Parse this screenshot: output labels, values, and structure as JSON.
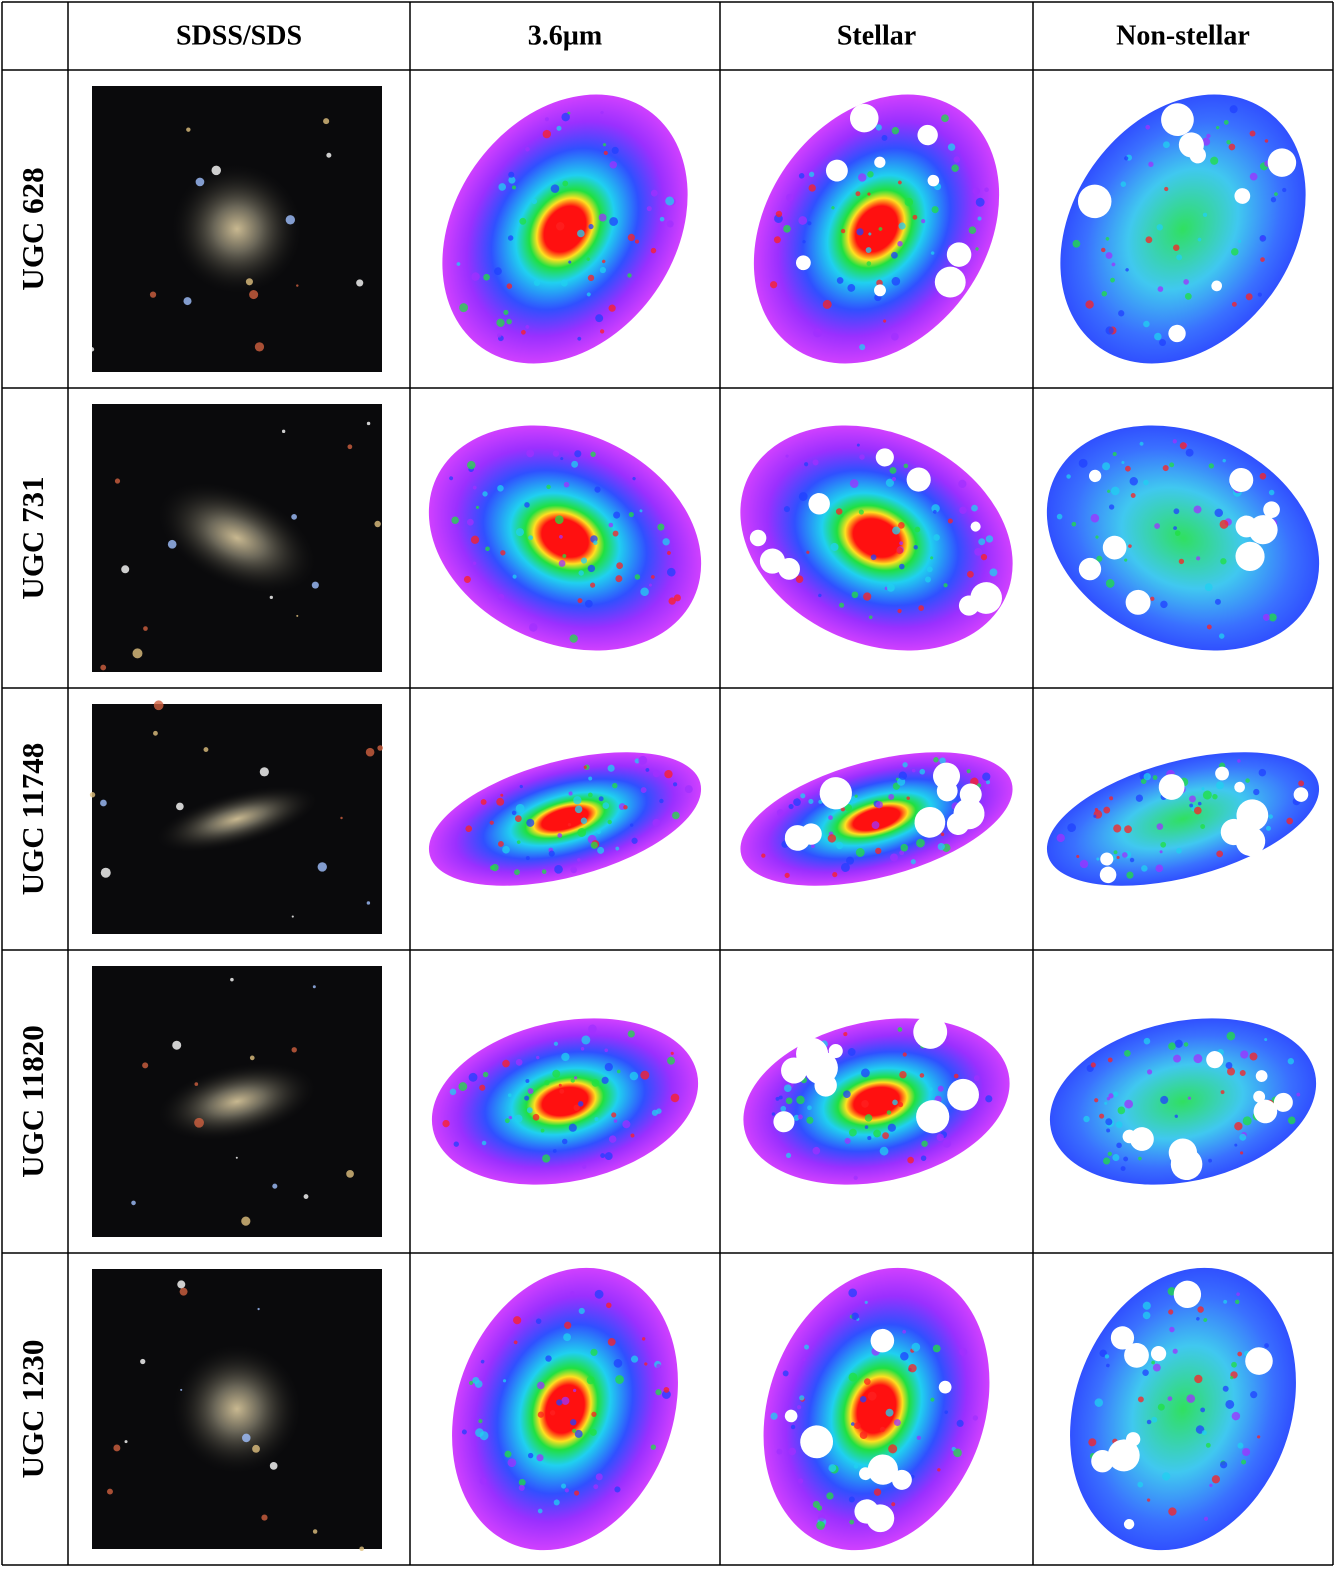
{
  "table": {
    "columns": [
      "SDSS/SDS",
      "3.6µm",
      "Stellar",
      "Non-stellar"
    ],
    "rows": [
      "UGC 628",
      "UGC 731",
      "UGC 11748",
      "UGC 11820",
      "UGC 1230"
    ]
  }
}
